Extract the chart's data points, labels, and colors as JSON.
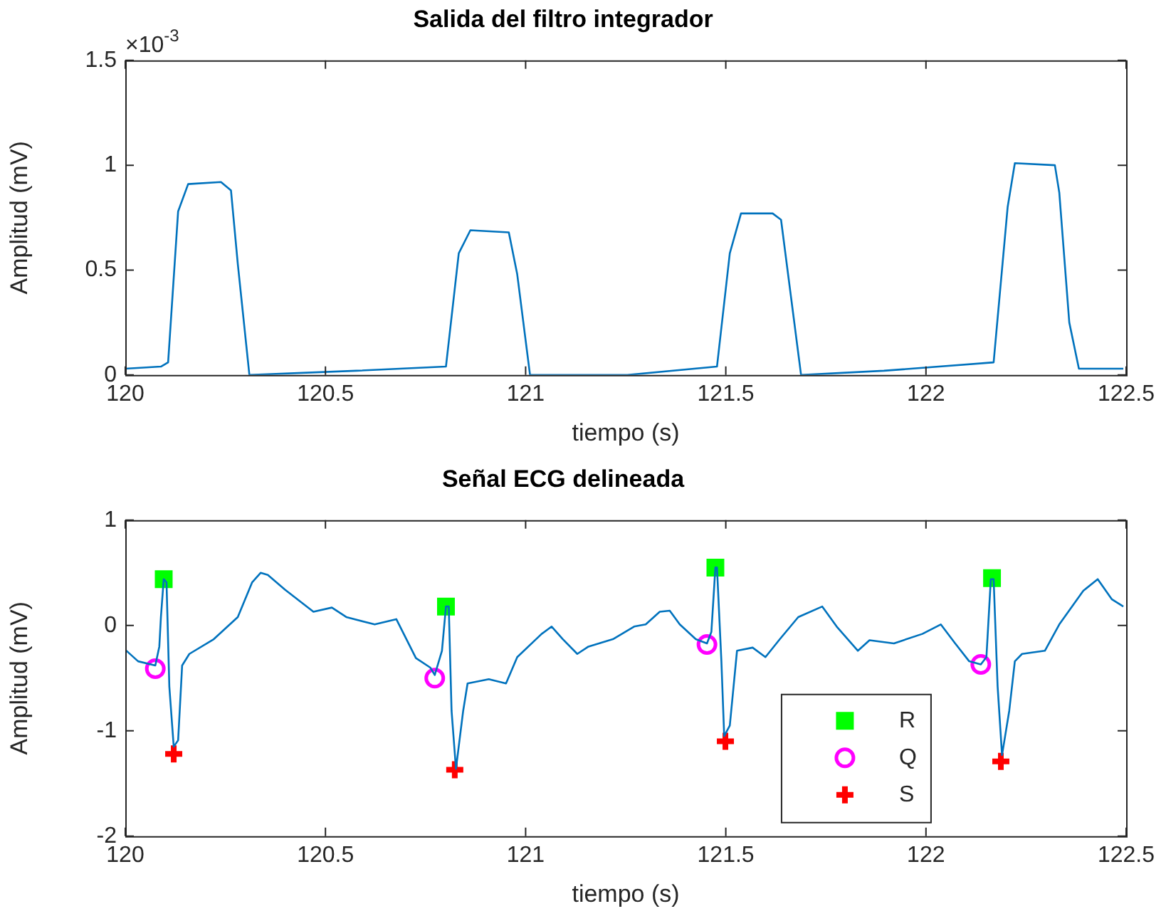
{
  "chart_data": [
    {
      "type": "line",
      "title": "Salida del filtro integrador",
      "xlabel": "tiempo (s)",
      "ylabel": "Amplitud (mV)",
      "annotations": [
        "×10$^{-3}$"
      ],
      "xlim": [
        120,
        122.5
      ],
      "xticks": [
        120,
        120.5,
        121,
        121.5,
        122,
        122.5
      ],
      "ylim": [
        0,
        1.5
      ],
      "yticks": [
        0,
        0.5,
        1,
        1.5
      ],
      "series": [
        {
          "color": "#0072bd",
          "x": [
            120.0,
            120.089,
            120.107,
            120.132,
            120.157,
            120.239,
            120.264,
            120.281,
            120.31,
            120.577,
            120.801,
            120.833,
            120.862,
            120.958,
            120.979,
            121.011,
            121.254,
            121.478,
            121.51,
            121.538,
            121.617,
            121.638,
            121.663,
            121.688,
            121.895,
            122.169,
            122.204,
            122.222,
            122.322,
            122.333,
            122.358,
            122.382,
            122.493
          ],
          "values": [
            0.03,
            0.04,
            0.06,
            0.78,
            0.91,
            0.92,
            0.88,
            0.53,
            0,
            0.02,
            0.04,
            0.58,
            0.69,
            0.68,
            0.48,
            0,
            0,
            0.04,
            0.58,
            0.77,
            0.77,
            0.74,
            0.37,
            0,
            0.02,
            0.06,
            0.8,
            1.01,
            1,
            0.87,
            0.25,
            0.03,
            0.03
          ]
        }
      ]
    },
    {
      "type": "line",
      "title": "Señal ECG delineada",
      "xlabel": "tiempo (s)",
      "ylabel": "Amplitud (mV)",
      "xlim": [
        120,
        122.5
      ],
      "xticks": [
        120,
        120.5,
        121,
        121.5,
        122,
        122.5
      ],
      "ylim": [
        -2,
        1
      ],
      "yticks": [
        -2,
        -1,
        0,
        1
      ],
      "legend": "bottom right",
      "series": [
        {
          "color": "#0072bd",
          "x": [
            120.0,
            120.032,
            120.075,
            120.085,
            120.089,
            120.096,
            120.103,
            120.11,
            120.121,
            120.132,
            120.142,
            120.16,
            120.221,
            120.281,
            120.317,
            120.338,
            120.356,
            120.399,
            120.47,
            120.516,
            120.552,
            120.623,
            120.677,
            120.726,
            120.762,
            120.773,
            120.791,
            120.801,
            120.808,
            120.815,
            120.826,
            120.844,
            120.855,
            120.908,
            120.951,
            120.979,
            121.04,
            121.065,
            121.093,
            121.129,
            121.157,
            121.218,
            121.271,
            121.3,
            121.335,
            121.36,
            121.385,
            121.425,
            121.453,
            121.464,
            121.474,
            121.478,
            121.489,
            121.496,
            121.51,
            121.528,
            121.567,
            121.599,
            121.635,
            121.681,
            121.741,
            121.777,
            121.83,
            121.859,
            121.92,
            121.991,
            122.037,
            122.073,
            122.108,
            122.137,
            122.151,
            122.162,
            122.169,
            122.179,
            122.19,
            122.208,
            122.222,
            122.24,
            122.297,
            122.333,
            122.393,
            122.429,
            122.464,
            122.493
          ],
          "values": [
            -0.23,
            -0.34,
            -0.38,
            -0.2,
            0.08,
            0.44,
            0.41,
            -0.58,
            -1.15,
            -1.09,
            -0.38,
            -0.27,
            -0.13,
            0.08,
            0.41,
            0.5,
            0.48,
            0.34,
            0.13,
            0.17,
            0.08,
            0.01,
            0.06,
            -0.31,
            -0.4,
            -0.47,
            -0.24,
            0.18,
            0.18,
            -0.81,
            -1.36,
            -0.81,
            -0.55,
            -0.51,
            -0.55,
            -0.3,
            -0.08,
            -0.01,
            -0.13,
            -0.27,
            -0.2,
            -0.13,
            -0.01,
            0.01,
            0.13,
            0.14,
            0.01,
            -0.13,
            -0.17,
            -0.06,
            0.55,
            0.55,
            -0.34,
            -1.05,
            -0.95,
            -0.24,
            -0.21,
            -0.3,
            -0.13,
            0.08,
            0.18,
            -0.01,
            -0.24,
            -0.14,
            -0.17,
            -0.08,
            0.01,
            -0.17,
            -0.34,
            -0.37,
            -0.3,
            0.44,
            0.44,
            -0.58,
            -1.23,
            -0.81,
            -0.34,
            -0.27,
            -0.24,
            0.01,
            0.33,
            0.44,
            0.25,
            0.18
          ]
        },
        {
          "type": "scatter",
          "name": "R",
          "color": "#00ff00",
          "marker": "square",
          "x": [
            120.096,
            120.801,
            121.474,
            122.165
          ],
          "values": [
            0.44,
            0.18,
            0.55,
            0.45
          ]
        },
        {
          "type": "scatter",
          "name": "Q",
          "color": "#ff00ff",
          "marker": "circle",
          "x": [
            120.075,
            120.773,
            121.453,
            122.137
          ],
          "values": [
            -0.41,
            -0.5,
            -0.18,
            -0.37
          ]
        },
        {
          "type": "scatter",
          "name": "S",
          "color": "#ff0000",
          "marker": "cross",
          "x": [
            120.121,
            120.823,
            121.499,
            122.187
          ],
          "values": [
            -1.22,
            -1.37,
            -1.1,
            -1.29
          ]
        }
      ]
    }
  ]
}
